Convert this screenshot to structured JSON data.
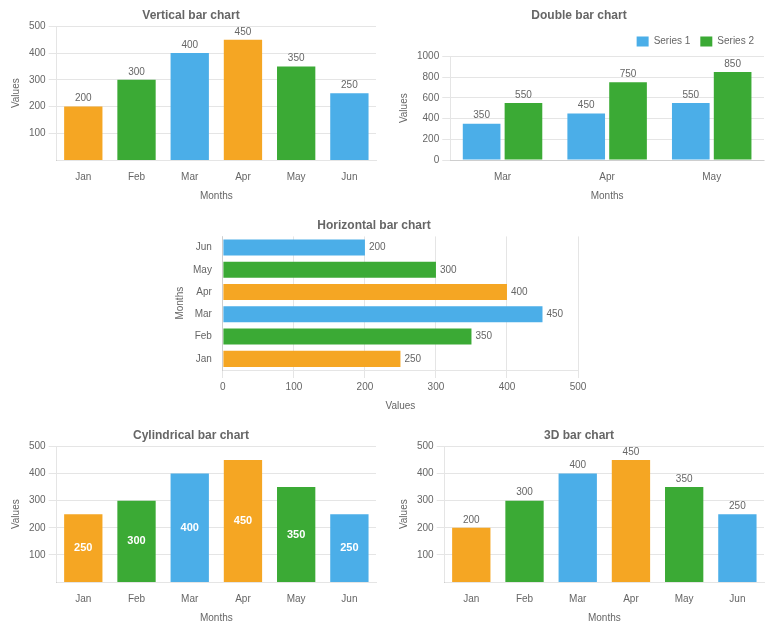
{
  "chart_data": [
    {
      "type": "bar",
      "title": "Vertical bar chart",
      "categories": [
        "Jan",
        "Feb",
        "Mar",
        "Apr",
        "May",
        "Jun"
      ],
      "values": [
        200,
        300,
        400,
        450,
        350,
        250
      ],
      "colors": [
        "#F5A623",
        "#3BAA35",
        "#4BAEE8",
        "#F5A623",
        "#3BAA35",
        "#4BAEE8"
      ],
      "xlabel": "Months",
      "ylabel": "Values",
      "ylim": [
        0,
        500
      ],
      "yticks": [
        100,
        200,
        300,
        400,
        500
      ],
      "grid": true,
      "data_labels": true
    },
    {
      "type": "bar",
      "title": "Double bar chart",
      "categories": [
        "Mar",
        "Apr",
        "May"
      ],
      "series": [
        {
          "name": "Series 1",
          "color": "#4BAEE8",
          "values": [
            350,
            450,
            550
          ]
        },
        {
          "name": "Series 2",
          "color": "#3BAA35",
          "values": [
            550,
            750,
            850
          ]
        }
      ],
      "xlabel": "Months",
      "ylabel": "Values",
      "ylim": [
        0,
        1000
      ],
      "yticks": [
        0,
        200,
        400,
        600,
        800,
        1000
      ],
      "grid": true,
      "legend": "upper right",
      "data_labels": true
    },
    {
      "type": "bar",
      "title": "Horizontal bar chart",
      "orientation": "horizontal",
      "categories": [
        "Jun",
        "May",
        "Apr",
        "Mar",
        "Feb",
        "Jan"
      ],
      "values": [
        200,
        300,
        400,
        450,
        350,
        250
      ],
      "colors": [
        "#4BAEE8",
        "#3BAA35",
        "#F5A623",
        "#4BAEE8",
        "#3BAA35",
        "#F5A623"
      ],
      "xlabel": "Values",
      "ylabel": "Months",
      "xlim": [
        0,
        500
      ],
      "xticks": [
        0,
        100,
        200,
        300,
        400,
        500
      ],
      "grid": true,
      "data_labels": true
    },
    {
      "type": "bar",
      "title": "Cylindrical bar chart",
      "categories": [
        "Jan",
        "Feb",
        "Mar",
        "Apr",
        "May",
        "Jun"
      ],
      "values": [
        250,
        300,
        400,
        450,
        350,
        250
      ],
      "colors": [
        "#F5A623",
        "#3BAA35",
        "#4BAEE8",
        "#F5A623",
        "#3BAA35",
        "#4BAEE8"
      ],
      "xlabel": "Months",
      "ylabel": "Values",
      "ylim": [
        0,
        500
      ],
      "yticks": [
        100,
        200,
        300,
        400,
        500
      ],
      "grid": true,
      "data_labels": true
    },
    {
      "type": "bar",
      "title": "3D bar chart",
      "categories": [
        "Jan",
        "Feb",
        "Mar",
        "Apr",
        "May",
        "Jun"
      ],
      "values": [
        200,
        300,
        400,
        450,
        350,
        250
      ],
      "colors": [
        "#F5A623",
        "#3BAA35",
        "#4BAEE8",
        "#F5A623",
        "#3BAA35",
        "#4BAEE8"
      ],
      "xlabel": "Months",
      "ylabel": "Values",
      "ylim": [
        0,
        500
      ],
      "yticks": [
        100,
        200,
        300,
        400,
        500
      ],
      "grid": true,
      "data_labels": true
    }
  ]
}
